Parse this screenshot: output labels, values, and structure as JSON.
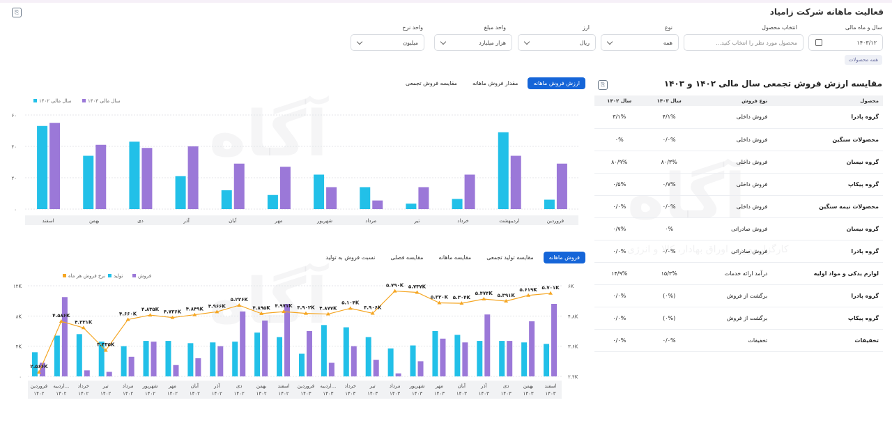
{
  "page": {
    "title": "فعالیت ماهانه شرکت زامیاد"
  },
  "filters": {
    "fiscal_month": {
      "label": "سال و ماه مالی",
      "value": "۱۴۰۳/۱۲"
    },
    "product": {
      "label": "انتخاب محصول",
      "placeholder": "محصول مورد نظر را انتخاب کنید..."
    },
    "type": {
      "label": "نوع",
      "value": "همه"
    },
    "currency": {
      "label": "ارز",
      "value": "ریال"
    },
    "amount_unit": {
      "label": "واحد مبلغ",
      "value": "هزار میلیارد"
    },
    "rate_unit": {
      "label": "واحد نرخ",
      "value": "میلیون"
    },
    "chip": "همه محصولات"
  },
  "table": {
    "title": "مقایسه ارزش فروش تجمعی سال مالی ۱۴۰۲ و ۱۴۰۳",
    "headers": [
      "محصول",
      "نوع فروش",
      "سال ۱۴۰۳",
      "سال ۱۴۰۲"
    ],
    "rows": [
      [
        "گروه پادرا",
        "فروش داخلی",
        "۴/۱%",
        "۳/۱%"
      ],
      [
        "محصولات سنگین",
        "فروش داخلی",
        "۰/۰%",
        "۰%"
      ],
      [
        "گروه نیسان",
        "فروش داخلی",
        "۸۰/۳%",
        "۸۰/۹%"
      ],
      [
        "گروه پیکاپ",
        "فروش داخلی",
        "۰/۷%",
        "۰/۵%"
      ],
      [
        "محصولات نیمه سنگین",
        "فروش داخلی",
        "۰/۰%",
        "۰/۰%"
      ],
      [
        "گروه نیسان",
        "فروش صادراتی",
        "۰%",
        "۰/۷%"
      ],
      [
        "گروه پادرا",
        "فروش صادراتی",
        "۰/۰%",
        "۰/۰%"
      ],
      [
        "لوازم یدکی و مواد اولیه",
        "درآمد ارائه خدمات",
        "۱۵/۳%",
        "۱۴/۹%"
      ],
      [
        "گروه پادرا",
        "برگشت از فروش",
        "(۰%)",
        "۰/۰%"
      ],
      [
        "گروه پیکاپ",
        "برگشت از فروش",
        "(۰%)",
        "۰/۰%"
      ],
      [
        "تخفیفات",
        "تخفیفات",
        "۰/۰%",
        "۰/۰%"
      ]
    ]
  },
  "chart1_tabs": [
    "ارزش فروش ماهانه",
    "مقدار فروش ماهانه",
    "مقایسه فروش تجمعی"
  ],
  "chart2_tabs": [
    "فروش ماهانه",
    "مقایسه تولید تجمعی",
    "مقایسه ماهانه",
    "مقایسه فصلی",
    "نسبت فروش به تولید"
  ],
  "watermark": {
    "brand": "آگاه",
    "tagline": "کارگزار بورس اوراق بهادار، کالا و انرژی"
  },
  "colors": {
    "cyan": "#22c0e8",
    "purple": "#9b78d8",
    "orange": "#f5a623",
    "accent": "#1565d8"
  },
  "chart_data": [
    {
      "type": "bar",
      "title": "",
      "categories": [
        "فروردین",
        "اردیبهشت",
        "خرداد",
        "تیر",
        "مرداد",
        "شهریور",
        "مهر",
        "آبان",
        "آذر",
        "دی",
        "بهمن",
        "اسفند"
      ],
      "series": [
        {
          "name": "سال مالی ۱۴۰۲",
          "values": [
            6,
            49,
            6.5,
            3.5,
            14,
            22,
            9,
            12,
            21,
            43,
            34,
            53
          ]
        },
        {
          "name": "سال مالی ۱۴۰۳",
          "values": [
            29,
            34,
            22,
            14,
            5.5,
            14,
            27,
            29,
            40,
            39,
            41,
            55
          ]
        }
      ],
      "yticks": [
        "۰",
        "۲۰",
        "۴۰",
        "۶۰"
      ],
      "ylim": [
        0,
        60
      ],
      "grid": true,
      "legend": "top-left"
    },
    {
      "type": "bar",
      "title": "",
      "categories": [
        "فروردین ۱۴۰۲",
        "اردیبه... ۱۴۰۲",
        "خرداد ۱۴۰۲",
        "تیر ۱۴۰۲",
        "مرداد ۱۴۰۲",
        "شهریور ۱۴۰۲",
        "مهر ۱۴۰۲",
        "آبان ۱۴۰۲",
        "آذر ۱۴۰۲",
        "دی ۱۴۰۲",
        "بهمن ۱۴۰۲",
        "اسفند ۱۴۰۲",
        "فروردین ۱۴۰۳",
        "اردیبه... ۱۴۰۳",
        "خرداد ۱۴۰۳",
        "تیر ۱۴۰۳",
        "مرداد ۱۴۰۳",
        "شهریور ۱۴۰۳",
        "مهر ۱۴۰۳",
        "آبان ۱۴۰۳",
        "آذر ۱۴۰۳",
        "دی ۱۴۰۳",
        "بهمن ۱۴۰۳",
        "اسفند ۱۴۰۳"
      ],
      "series": [
        {
          "name": "تولید",
          "axis": "left",
          "values": [
            3.2,
            5.4,
            5.6,
            4.6,
            4.0,
            4.7,
            4.7,
            4.4,
            4.5,
            4.6,
            5.8,
            5.2,
            3.0,
            6.8,
            6.5,
            5.2,
            3.7,
            4.1,
            6.0,
            5.5,
            4.7,
            4.7,
            4.5,
            4.3
          ]
        },
        {
          "name": "فروش",
          "axis": "left",
          "values": [
            1.8,
            10.5,
            0.8,
            0.6,
            2.6,
            4.6,
            1.5,
            2.4,
            4.0,
            8.6,
            7.4,
            9.6,
            6.0,
            1.8,
            4.0,
            2.2,
            0.4,
            2.0,
            5.0,
            4.5,
            8.2,
            4.7,
            7.3,
            9.6
          ]
        },
        {
          "name": "نرخ فروش هر ماه",
          "axis": "right",
          "values": [
            2.566,
            4.586,
            4.331,
            3.435,
            4.66,
            4.835,
            4.736,
            4.849,
            4.966,
            5.226,
            4.895,
            4.971,
            4.902,
            4.877,
            5.104,
            4.906,
            5.79,
            5.737,
            5.32,
            5.304,
            5.474,
            5.391,
            5.619,
            5.701
          ],
          "labels": [
            "۲.۵۶۶K",
            "۴.۵۸۶K",
            "۴.۳۳۱K",
            "۳.۴۳۵K",
            "۴.۶۶۰K",
            "۴.۸۳۵K",
            "۴.۷۳۶K",
            "۴.۸۴۹K",
            "۴.۹۶۶K",
            "۵.۲۲۶K",
            "۴.۸۹۵K",
            "۴.۹۷۱K",
            "۴.۹۰۲K",
            "۴.۸۷۷K",
            "۵.۱۰۴K",
            "۴.۹۰۶K",
            "۵.۷۹۰K",
            "۵.۷۳۷K",
            "۵.۳۲۰K",
            "۵.۳۰۴K",
            "۵.۴۷۴K",
            "۵.۳۹۱K",
            "۵.۶۱۹K",
            "۵.۷۰۱K"
          ]
        }
      ],
      "yticks_left": [
        "۰",
        "۴K",
        "۸K",
        "۱۲K"
      ],
      "ylim_left": [
        0,
        12
      ],
      "yticks_right": [
        "۲.۴K",
        "۳.۶K",
        "۴.۸K",
        "۶K"
      ],
      "ylim_right": [
        2.4,
        6
      ],
      "grid": true,
      "legend": "top-left"
    }
  ]
}
